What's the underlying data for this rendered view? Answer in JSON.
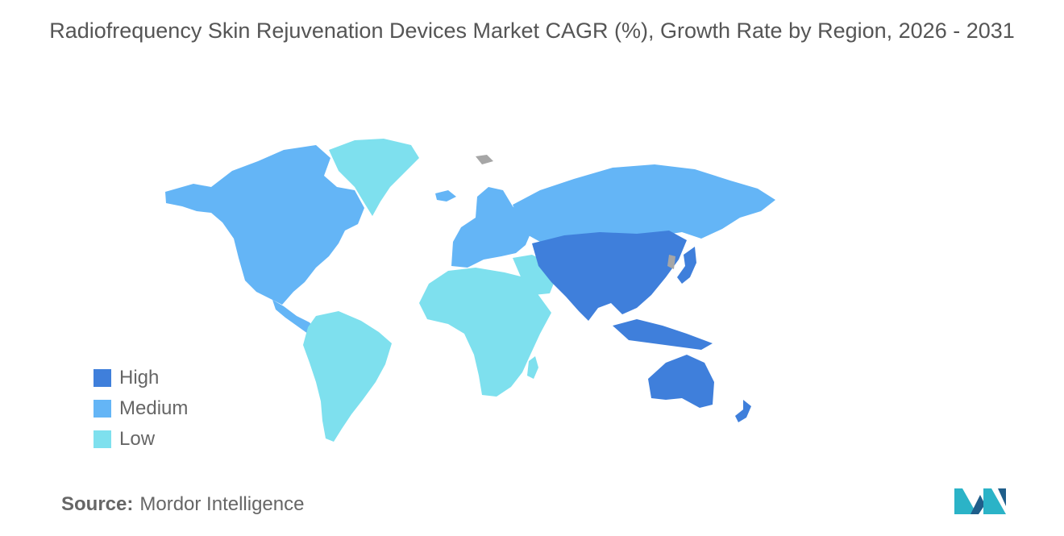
{
  "title": "Radiofrequency Skin Rejuvenation Devices Market CAGR (%), Growth Rate by Region, 2026 - 2031",
  "colors": {
    "high": "#3f7fdb",
    "medium": "#64b5f6",
    "low": "#7ee0ee",
    "no_data": "#a6a6a6"
  },
  "legend": [
    {
      "label": "High",
      "color": "#3f7fdb"
    },
    {
      "label": "Medium",
      "color": "#64b5f6"
    },
    {
      "label": "Low",
      "color": "#7ee0ee"
    }
  ],
  "regions": {
    "north_america": "Medium",
    "europe": "Medium",
    "russia": "Medium",
    "asia_pacific": "High",
    "australia_oceania": "High",
    "greenland": "Low",
    "south_america": "Low",
    "middle_east_africa": "Low"
  },
  "source": {
    "label": "Source:",
    "value": "Mordor Intelligence"
  },
  "logo_name": "mordor-intelligence-logo"
}
